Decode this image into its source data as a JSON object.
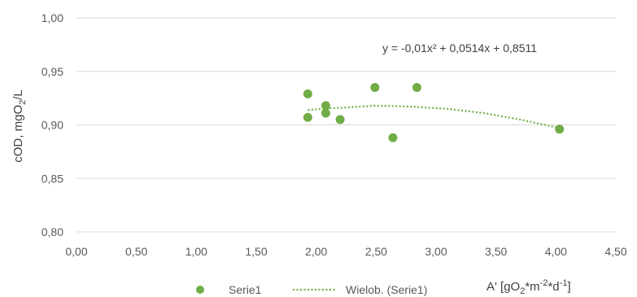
{
  "chart_data": {
    "type": "scatter",
    "title": "",
    "xlabel_parts": {
      "a": "A' [gO",
      "b": "2",
      "c": "*m",
      "d": "-2",
      "e": "*d",
      "f": "-1",
      "g": "]"
    },
    "ylabel_parts": {
      "a": "cOD, mgO",
      "b": "2",
      "c": "/L"
    },
    "xlim": [
      0,
      4.5
    ],
    "ylim": [
      0.8,
      1.0
    ],
    "x_ticks": [
      "0,00",
      "0,50",
      "1,00",
      "1,50",
      "2,00",
      "2,50",
      "3,00",
      "3,50",
      "4,00",
      "4,50"
    ],
    "y_ticks": [
      "0,80",
      "0,85",
      "0,90",
      "0,95",
      "1,00"
    ],
    "grid": "horizontal",
    "series": [
      {
        "name": "Serie1",
        "color": "#70AD47",
        "points": [
          {
            "x": 1.93,
            "y": 0.929
          },
          {
            "x": 1.93,
            "y": 0.907
          },
          {
            "x": 2.08,
            "y": 0.918
          },
          {
            "x": 2.08,
            "y": 0.911
          },
          {
            "x": 2.2,
            "y": 0.905
          },
          {
            "x": 2.49,
            "y": 0.935
          },
          {
            "x": 2.64,
            "y": 0.888
          },
          {
            "x": 2.84,
            "y": 0.935
          },
          {
            "x": 4.03,
            "y": 0.896
          }
        ]
      }
    ],
    "trendline": {
      "name": "Wielob. (Serie1)",
      "color": "#70AD47",
      "x_range": [
        1.93,
        4.03
      ],
      "equation": "y = -0,01x² + 0,0514x + 0,8511",
      "points": [
        {
          "x": 1.93,
          "y": 0.914
        },
        {
          "x": 2.2,
          "y": 0.916
        },
        {
          "x": 2.5,
          "y": 0.918
        },
        {
          "x": 2.8,
          "y": 0.917
        },
        {
          "x": 3.1,
          "y": 0.915
        },
        {
          "x": 3.4,
          "y": 0.911
        },
        {
          "x": 3.7,
          "y": 0.905
        },
        {
          "x": 4.03,
          "y": 0.897
        }
      ]
    },
    "legend": {
      "placement": "bottom"
    }
  }
}
